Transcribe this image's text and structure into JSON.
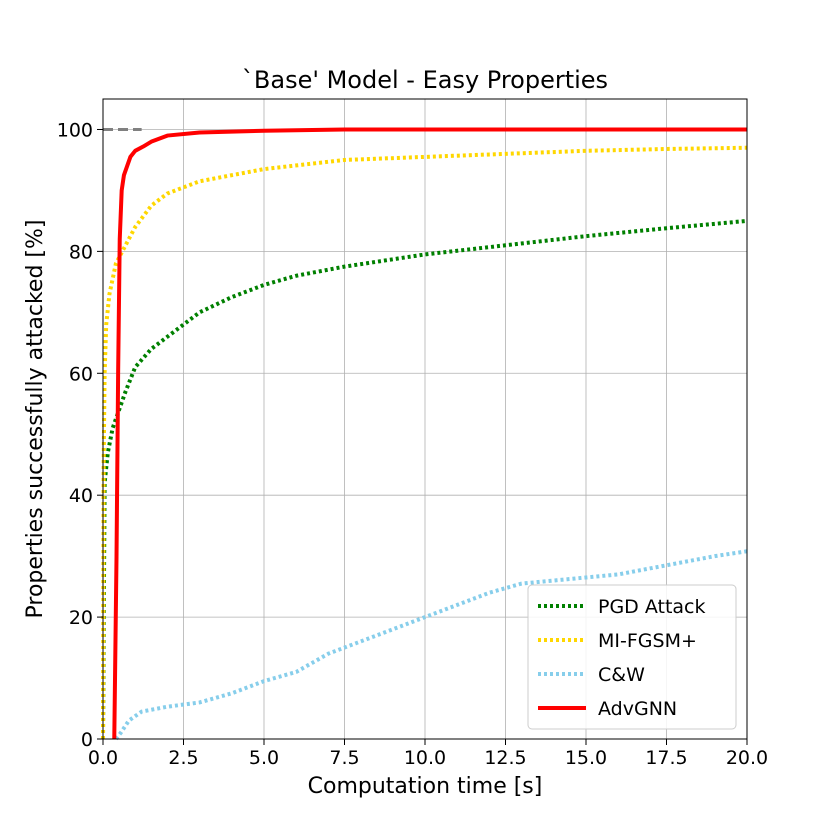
{
  "chart_data": {
    "type": "line",
    "title": "`Base' Model - Easy Properties",
    "xlabel": "Computation time [s]",
    "ylabel": "Properties successfully attacked [%]",
    "xlim": [
      0,
      20
    ],
    "ylim": [
      0,
      105
    ],
    "x_ticks": [
      "0.0",
      "2.5",
      "5.0",
      "7.5",
      "10.0",
      "12.5",
      "15.0",
      "17.5",
      "20.0"
    ],
    "y_ticks": [
      "0",
      "20",
      "40",
      "60",
      "80",
      "100"
    ],
    "grid": true,
    "legend_position": "lower-right",
    "reference_line": {
      "y": 100,
      "x_range": [
        0,
        1.2
      ],
      "color": "#808080",
      "style": "dashed"
    },
    "series": [
      {
        "name": "PGD Attack",
        "color": "#008000",
        "style": "dotted",
        "points": [
          [
            0.0,
            0
          ],
          [
            0.05,
            42
          ],
          [
            0.15,
            47
          ],
          [
            0.3,
            51
          ],
          [
            0.5,
            54
          ],
          [
            0.7,
            57
          ],
          [
            1.0,
            61
          ],
          [
            1.5,
            64
          ],
          [
            2.0,
            66
          ],
          [
            2.5,
            68
          ],
          [
            3.0,
            70
          ],
          [
            4.0,
            72.5
          ],
          [
            5.0,
            74.5
          ],
          [
            6.0,
            76
          ],
          [
            7.5,
            77.5
          ],
          [
            10.0,
            79.5
          ],
          [
            12.5,
            81
          ],
          [
            15.0,
            82.5
          ],
          [
            17.5,
            83.8
          ],
          [
            20.0,
            85
          ]
        ]
      },
      {
        "name": "MI-FGSM+",
        "color": "#FFD700",
        "style": "dotted",
        "points": [
          [
            0.0,
            0
          ],
          [
            0.02,
            45
          ],
          [
            0.05,
            60
          ],
          [
            0.1,
            68
          ],
          [
            0.2,
            73
          ],
          [
            0.4,
            78
          ],
          [
            0.7,
            81
          ],
          [
            1.0,
            84
          ],
          [
            1.5,
            87.5
          ],
          [
            2.0,
            89.5
          ],
          [
            2.5,
            90.5
          ],
          [
            3.0,
            91.5
          ],
          [
            5.0,
            93.5
          ],
          [
            7.5,
            95
          ],
          [
            10.0,
            95.5
          ],
          [
            12.5,
            96
          ],
          [
            15.0,
            96.5
          ],
          [
            17.5,
            96.8
          ],
          [
            20.0,
            97
          ]
        ]
      },
      {
        "name": "C&W",
        "color": "#87CEEB",
        "style": "dotted",
        "points": [
          [
            0.4,
            0
          ],
          [
            0.55,
            1
          ],
          [
            0.8,
            3
          ],
          [
            1.2,
            4.5
          ],
          [
            2.0,
            5.3
          ],
          [
            3.0,
            6
          ],
          [
            4.0,
            7.5
          ],
          [
            5.0,
            9.5
          ],
          [
            6.0,
            11
          ],
          [
            7.0,
            14
          ],
          [
            8.0,
            16
          ],
          [
            9.0,
            18
          ],
          [
            10.0,
            20
          ],
          [
            11.0,
            22
          ],
          [
            12.0,
            24
          ],
          [
            13.0,
            25.5
          ],
          [
            14.0,
            26
          ],
          [
            15.0,
            26.5
          ],
          [
            16.0,
            27
          ],
          [
            17.0,
            28
          ],
          [
            18.0,
            29
          ],
          [
            19.0,
            30
          ],
          [
            20.0,
            30.8
          ]
        ]
      },
      {
        "name": "AdvGNN",
        "color": "#FF0000",
        "style": "solid",
        "points": [
          [
            0.35,
            0
          ],
          [
            0.42,
            30
          ],
          [
            0.47,
            60
          ],
          [
            0.52,
            82
          ],
          [
            0.58,
            90
          ],
          [
            0.65,
            92.5
          ],
          [
            0.75,
            94
          ],
          [
            0.85,
            95.5
          ],
          [
            1.0,
            96.5
          ],
          [
            1.25,
            97.2
          ],
          [
            1.5,
            98
          ],
          [
            2.0,
            99
          ],
          [
            3.0,
            99.5
          ],
          [
            5.0,
            99.8
          ],
          [
            7.5,
            100
          ],
          [
            20.0,
            100
          ]
        ]
      }
    ]
  }
}
